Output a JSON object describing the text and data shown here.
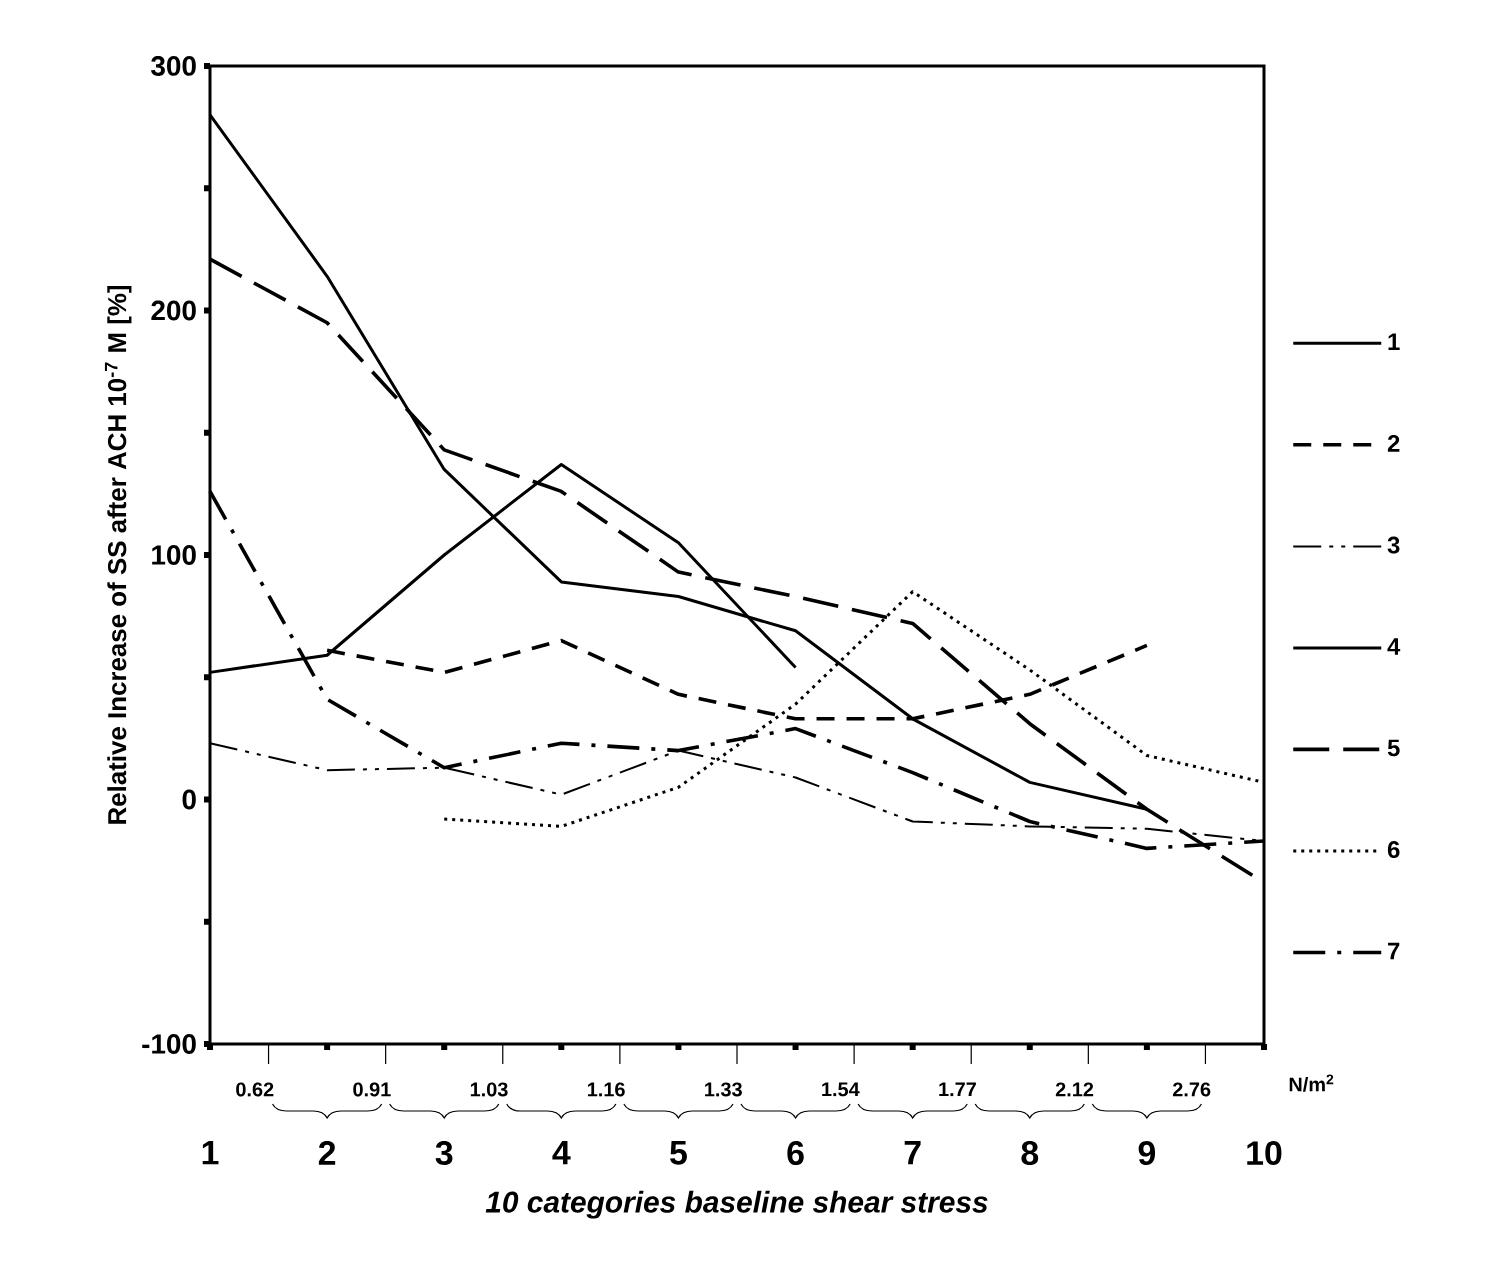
{
  "chart_data": {
    "type": "line",
    "ylabel": "Relative Increase of SS after ACH 10$^{-7}$ M [%]",
    "xlabel": "*10 categories baseline shear stress*",
    "categories": [
      "1",
      "2",
      "3",
      "4",
      "5",
      "6",
      "7",
      "8",
      "9",
      "10"
    ],
    "ylim": [
      -100,
      300
    ],
    "yticks": [
      -100,
      {
        "value": -50,
        "label": null
      },
      0,
      {
        "value": 50,
        "label": null
      },
      100,
      {
        "value": 150,
        "label": null
      },
      200,
      {
        "value": 250,
        "label": null
      },
      300
    ],
    "legend": "right",
    "grid": false,
    "marker": "none",
    "series": [
      {
        "name": "1",
        "color": "#000000",
        "line_style": "solid",
        "values": [
          52,
          59,
          100,
          137,
          105,
          54,
          null,
          null,
          null,
          null
        ]
      },
      {
        "name": "2",
        "color": "#000000",
        "line_style": "dashed",
        "values": [
          null,
          61,
          52,
          65,
          43,
          33,
          33,
          43,
          63,
          null
        ]
      },
      {
        "name": "3",
        "color": "#000000",
        "line_style": "dashdotdot",
        "values": [
          23,
          12,
          13,
          2,
          20,
          9,
          -9,
          -11,
          -12,
          -17
        ]
      },
      {
        "name": "4",
        "color": "#000000",
        "line_style": "solid",
        "values": [
          280,
          214,
          135,
          89,
          83,
          69,
          33,
          7,
          -4,
          null
        ]
      },
      {
        "name": "5",
        "color": "#000000",
        "line_style": "longdashed",
        "values": [
          221,
          195,
          143,
          126,
          93,
          83,
          72,
          31,
          -4,
          -34
        ]
      },
      {
        "name": "6",
        "color": "#000000",
        "line_style": "dotted",
        "values": [
          null,
          null,
          -8,
          -11,
          5,
          39,
          85,
          53,
          18,
          7
        ]
      },
      {
        "name": "7",
        "color": "#000000",
        "line_style": "dashdot",
        "values": [
          126,
          41,
          13,
          23,
          20,
          29,
          11,
          -9,
          -20,
          -17
        ]
      }
    ],
    "annotations": [
      "0.62",
      "0.91",
      "1.03",
      "1.16",
      "1.33",
      "1.54",
      "1.77",
      "2.12",
      "2.76",
      "N/m$^{2}$"
    ]
  }
}
